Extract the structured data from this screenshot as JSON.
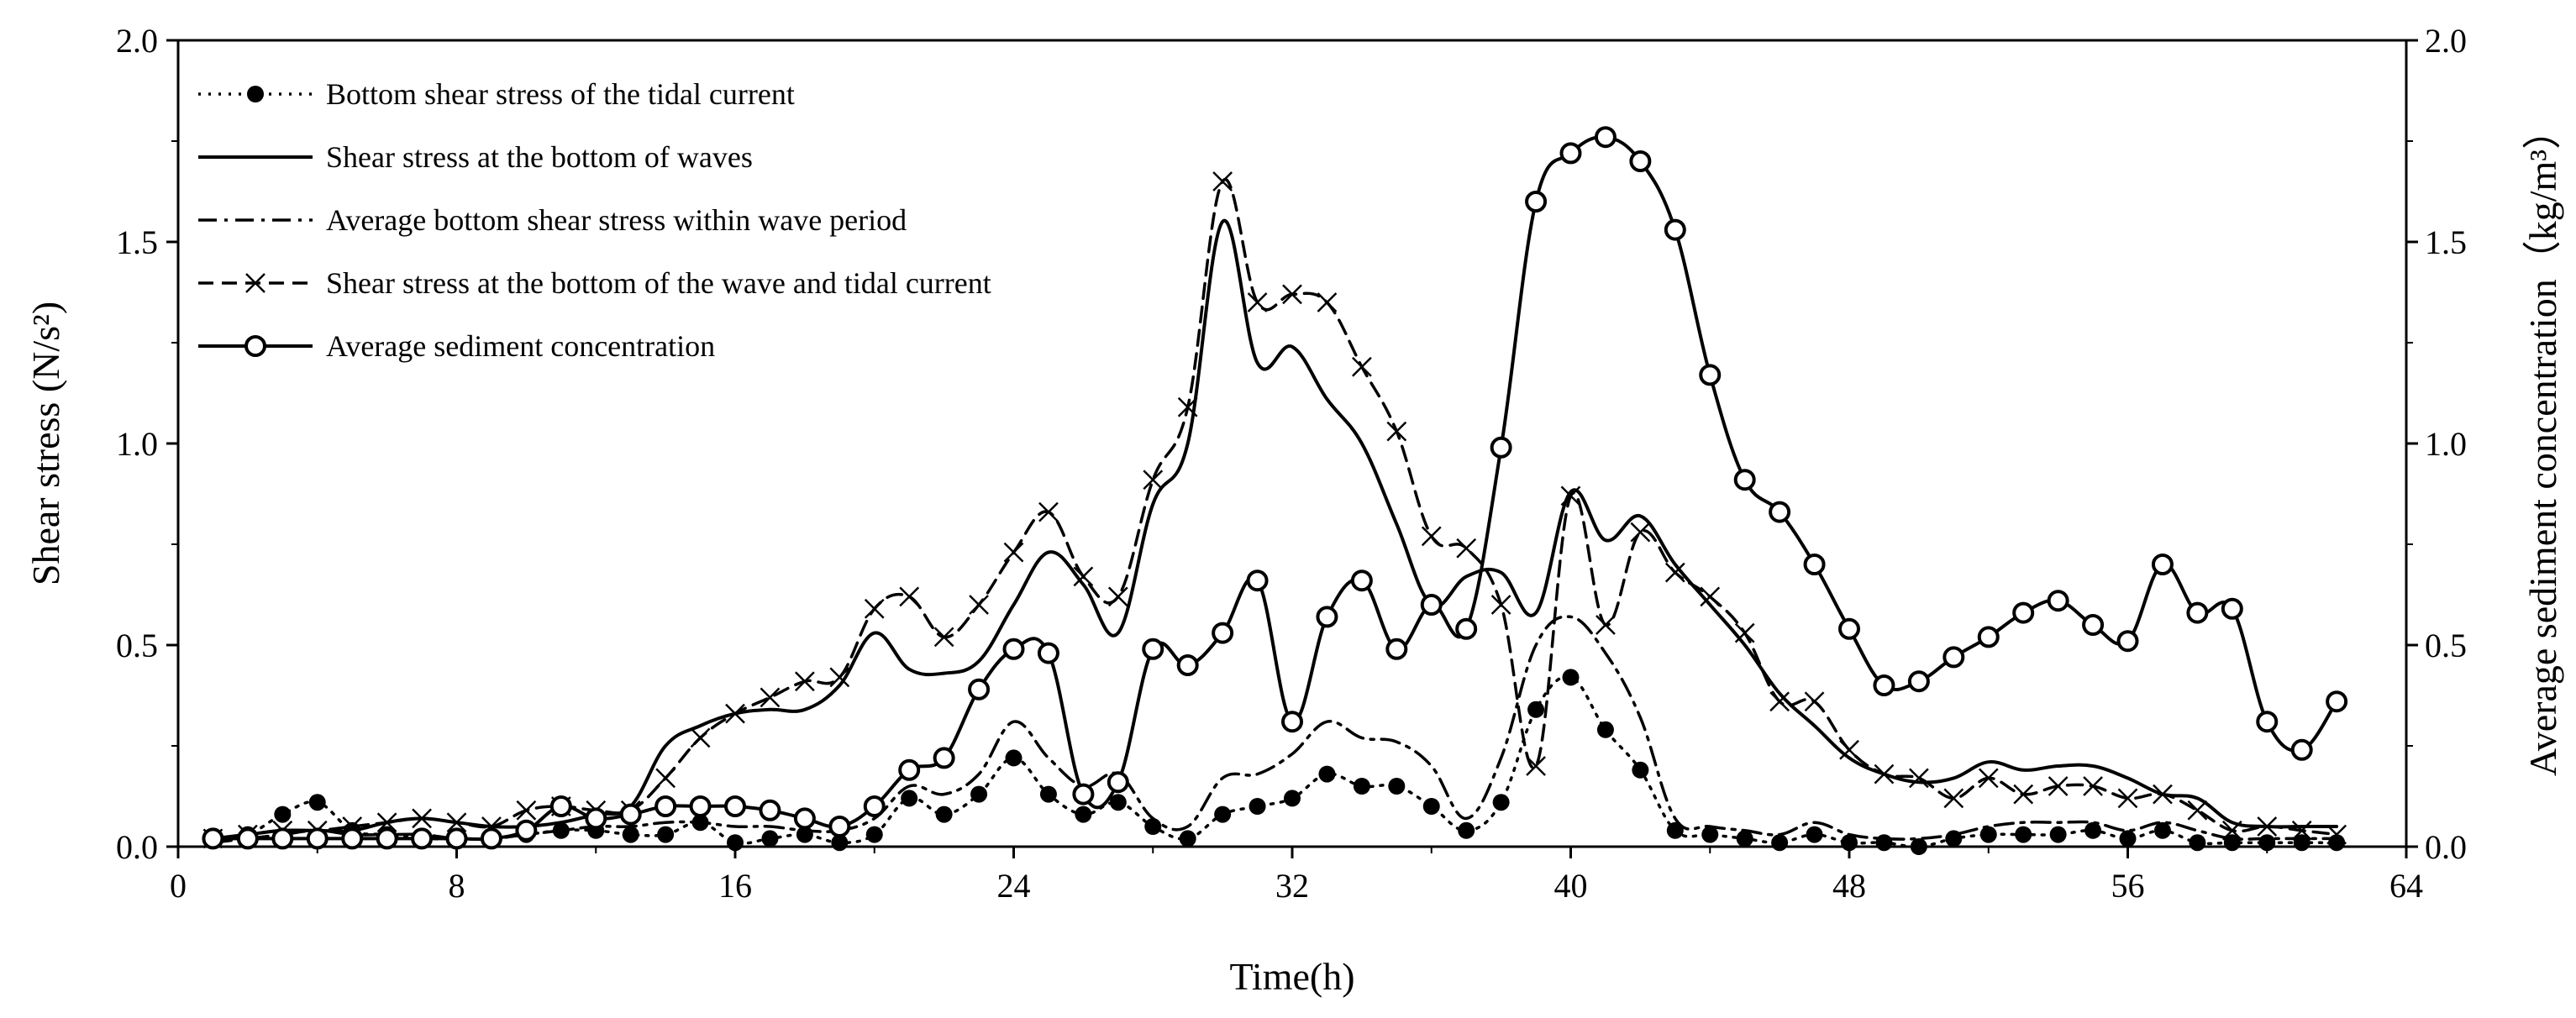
{
  "chart_data": {
    "type": "line",
    "xlabel": "Time(h)",
    "ylabel": "Shear stress (N/s²)",
    "y2label": "Average sediment concentration（kg/m³）",
    "xlim": [
      0,
      64
    ],
    "ylim": [
      0,
      2.0
    ],
    "y2lim": [
      0,
      2.0
    ],
    "xticks": [
      "0",
      "8",
      "16",
      "24",
      "32",
      "40",
      "48",
      "56",
      "64"
    ],
    "yticks": [
      "0.0",
      "0.5",
      "1.0",
      "1.5",
      "2.0"
    ],
    "y2ticks": [
      "0.0",
      "0.5",
      "1.0",
      "1.5",
      "2.0"
    ],
    "legend_position": "top-left",
    "series": [
      {
        "name": "Bottom shear stress of the tidal current",
        "style": "dotted",
        "marker": "filled-circle",
        "axis": "left",
        "points": [
          [
            1,
            0.02
          ],
          [
            2,
            0.03
          ],
          [
            3,
            0.08
          ],
          [
            4,
            0.11
          ],
          [
            5,
            0.04
          ],
          [
            6,
            0.03
          ],
          [
            7,
            0.02
          ],
          [
            8,
            0.02
          ],
          [
            9,
            0.02
          ],
          [
            10,
            0.03
          ],
          [
            11,
            0.04
          ],
          [
            12,
            0.04
          ],
          [
            13,
            0.03
          ],
          [
            14,
            0.03
          ],
          [
            15,
            0.06
          ],
          [
            16,
            0.01
          ],
          [
            17,
            0.02
          ],
          [
            18,
            0.03
          ],
          [
            19,
            0.01
          ],
          [
            20,
            0.03
          ],
          [
            21,
            0.12
          ],
          [
            22,
            0.08
          ],
          [
            23,
            0.13
          ],
          [
            24,
            0.22
          ],
          [
            25,
            0.13
          ],
          [
            26,
            0.08
          ],
          [
            27,
            0.11
          ],
          [
            28,
            0.05
          ],
          [
            29,
            0.02
          ],
          [
            30,
            0.08
          ],
          [
            31,
            0.1
          ],
          [
            32,
            0.12
          ],
          [
            33,
            0.18
          ],
          [
            34,
            0.15
          ],
          [
            35,
            0.15
          ],
          [
            36,
            0.1
          ],
          [
            37,
            0.04
          ],
          [
            38,
            0.11
          ],
          [
            39,
            0.34
          ],
          [
            40,
            0.42
          ],
          [
            41,
            0.29
          ],
          [
            42,
            0.19
          ],
          [
            43,
            0.04
          ],
          [
            44,
            0.03
          ],
          [
            45,
            0.02
          ],
          [
            46,
            0.01
          ],
          [
            47,
            0.03
          ],
          [
            48,
            0.01
          ],
          [
            49,
            0.01
          ],
          [
            50,
            0.0
          ],
          [
            51,
            0.02
          ],
          [
            52,
            0.03
          ],
          [
            53,
            0.03
          ],
          [
            54,
            0.03
          ],
          [
            55,
            0.04
          ],
          [
            56,
            0.02
          ],
          [
            57,
            0.04
          ],
          [
            58,
            0.01
          ],
          [
            59,
            0.01
          ],
          [
            60,
            0.01
          ],
          [
            61,
            0.01
          ],
          [
            62,
            0.01
          ]
        ]
      },
      {
        "name": "Shear stress at the bottom of waves",
        "style": "solid",
        "marker": "none",
        "axis": "left",
        "points": [
          [
            1,
            0.02
          ],
          [
            2,
            0.03
          ],
          [
            3,
            0.04
          ],
          [
            4,
            0.04
          ],
          [
            5,
            0.04
          ],
          [
            6,
            0.06
          ],
          [
            7,
            0.07
          ],
          [
            8,
            0.06
          ],
          [
            9,
            0.05
          ],
          [
            10,
            0.05
          ],
          [
            11,
            0.06
          ],
          [
            12,
            0.08
          ],
          [
            13,
            0.1
          ],
          [
            14,
            0.25
          ],
          [
            15,
            0.3
          ],
          [
            16,
            0.33
          ],
          [
            17,
            0.34
          ],
          [
            18,
            0.34
          ],
          [
            19,
            0.4
          ],
          [
            20,
            0.53
          ],
          [
            21,
            0.44
          ],
          [
            22,
            0.43
          ],
          [
            23,
            0.46
          ],
          [
            24,
            0.6
          ],
          [
            25,
            0.73
          ],
          [
            26,
            0.65
          ],
          [
            27,
            0.53
          ],
          [
            28,
            0.85
          ],
          [
            29,
            1.0
          ],
          [
            30,
            1.55
          ],
          [
            31,
            1.2
          ],
          [
            32,
            1.24
          ],
          [
            33,
            1.11
          ],
          [
            34,
            1.0
          ],
          [
            35,
            0.8
          ],
          [
            36,
            0.6
          ],
          [
            37,
            0.67
          ],
          [
            38,
            0.68
          ],
          [
            39,
            0.58
          ],
          [
            40,
            0.88
          ],
          [
            41,
            0.76
          ],
          [
            42,
            0.82
          ],
          [
            43,
            0.7
          ],
          [
            44,
            0.6
          ],
          [
            45,
            0.5
          ],
          [
            46,
            0.38
          ],
          [
            47,
            0.3
          ],
          [
            48,
            0.22
          ],
          [
            49,
            0.18
          ],
          [
            50,
            0.16
          ],
          [
            51,
            0.17
          ],
          [
            52,
            0.21
          ],
          [
            53,
            0.19
          ],
          [
            54,
            0.2
          ],
          [
            55,
            0.2
          ],
          [
            56,
            0.17
          ],
          [
            57,
            0.13
          ],
          [
            58,
            0.12
          ],
          [
            59,
            0.06
          ],
          [
            60,
            0.05
          ],
          [
            61,
            0.05
          ],
          [
            62,
            0.05
          ]
        ]
      },
      {
        "name": "Average bottom shear stress within wave period",
        "style": "dash-dot",
        "marker": "none",
        "axis": "left",
        "points": [
          [
            1,
            0.01
          ],
          [
            2,
            0.02
          ],
          [
            3,
            0.03
          ],
          [
            4,
            0.04
          ],
          [
            5,
            0.03
          ],
          [
            6,
            0.03
          ],
          [
            7,
            0.03
          ],
          [
            8,
            0.02
          ],
          [
            9,
            0.02
          ],
          [
            10,
            0.03
          ],
          [
            11,
            0.04
          ],
          [
            12,
            0.05
          ],
          [
            13,
            0.05
          ],
          [
            14,
            0.06
          ],
          [
            15,
            0.06
          ],
          [
            16,
            0.05
          ],
          [
            17,
            0.05
          ],
          [
            18,
            0.04
          ],
          [
            19,
            0.04
          ],
          [
            20,
            0.07
          ],
          [
            21,
            0.15
          ],
          [
            22,
            0.13
          ],
          [
            23,
            0.18
          ],
          [
            24,
            0.31
          ],
          [
            25,
            0.22
          ],
          [
            26,
            0.15
          ],
          [
            27,
            0.18
          ],
          [
            28,
            0.07
          ],
          [
            29,
            0.05
          ],
          [
            30,
            0.17
          ],
          [
            31,
            0.18
          ],
          [
            32,
            0.23
          ],
          [
            33,
            0.31
          ],
          [
            34,
            0.27
          ],
          [
            35,
            0.26
          ],
          [
            36,
            0.2
          ],
          [
            37,
            0.07
          ],
          [
            38,
            0.22
          ],
          [
            39,
            0.5
          ],
          [
            40,
            0.57
          ],
          [
            41,
            0.48
          ],
          [
            42,
            0.32
          ],
          [
            43,
            0.07
          ],
          [
            44,
            0.05
          ],
          [
            45,
            0.04
          ],
          [
            46,
            0.03
          ],
          [
            47,
            0.06
          ],
          [
            48,
            0.03
          ],
          [
            49,
            0.02
          ],
          [
            50,
            0.02
          ],
          [
            51,
            0.03
          ],
          [
            52,
            0.05
          ],
          [
            53,
            0.06
          ],
          [
            54,
            0.06
          ],
          [
            55,
            0.06
          ],
          [
            56,
            0.04
          ],
          [
            57,
            0.06
          ],
          [
            58,
            0.04
          ],
          [
            59,
            0.02
          ],
          [
            60,
            0.02
          ],
          [
            61,
            0.02
          ],
          [
            62,
            0.02
          ]
        ]
      },
      {
        "name": "Shear stress at the bottom of the wave and tidal current",
        "style": "dashed",
        "marker": "x",
        "axis": "left",
        "points": [
          [
            1,
            0.02
          ],
          [
            2,
            0.03
          ],
          [
            3,
            0.04
          ],
          [
            4,
            0.04
          ],
          [
            5,
            0.05
          ],
          [
            6,
            0.06
          ],
          [
            7,
            0.07
          ],
          [
            8,
            0.06
          ],
          [
            9,
            0.05
          ],
          [
            10,
            0.09
          ],
          [
            11,
            0.1
          ],
          [
            12,
            0.09
          ],
          [
            13,
            0.09
          ],
          [
            14,
            0.17
          ],
          [
            15,
            0.27
          ],
          [
            16,
            0.33
          ],
          [
            17,
            0.37
          ],
          [
            18,
            0.41
          ],
          [
            19,
            0.42
          ],
          [
            20,
            0.59
          ],
          [
            21,
            0.62
          ],
          [
            22,
            0.52
          ],
          [
            23,
            0.6
          ],
          [
            24,
            0.73
          ],
          [
            25,
            0.83
          ],
          [
            26,
            0.67
          ],
          [
            27,
            0.62
          ],
          [
            28,
            0.91
          ],
          [
            29,
            1.09
          ],
          [
            30,
            1.65
          ],
          [
            31,
            1.35
          ],
          [
            32,
            1.37
          ],
          [
            33,
            1.35
          ],
          [
            34,
            1.19
          ],
          [
            35,
            1.03
          ],
          [
            36,
            0.77
          ],
          [
            37,
            0.74
          ],
          [
            38,
            0.6
          ],
          [
            39,
            0.2
          ],
          [
            40,
            0.87
          ],
          [
            41,
            0.55
          ],
          [
            42,
            0.78
          ],
          [
            43,
            0.68
          ],
          [
            44,
            0.62
          ],
          [
            45,
            0.53
          ],
          [
            46,
            0.36
          ],
          [
            47,
            0.36
          ],
          [
            48,
            0.24
          ],
          [
            49,
            0.18
          ],
          [
            50,
            0.17
          ],
          [
            51,
            0.12
          ],
          [
            52,
            0.17
          ],
          [
            53,
            0.13
          ],
          [
            54,
            0.15
          ],
          [
            55,
            0.15
          ],
          [
            56,
            0.12
          ],
          [
            57,
            0.13
          ],
          [
            58,
            0.09
          ],
          [
            59,
            0.04
          ],
          [
            60,
            0.05
          ],
          [
            61,
            0.04
          ],
          [
            62,
            0.03
          ]
        ]
      },
      {
        "name": "Average sediment concentration",
        "style": "solid",
        "marker": "open-circle",
        "axis": "right",
        "points": [
          [
            1,
            0.02
          ],
          [
            2,
            0.02
          ],
          [
            3,
            0.02
          ],
          [
            4,
            0.02
          ],
          [
            5,
            0.02
          ],
          [
            6,
            0.02
          ],
          [
            7,
            0.02
          ],
          [
            8,
            0.02
          ],
          [
            9,
            0.02
          ],
          [
            10,
            0.04
          ],
          [
            11,
            0.1
          ],
          [
            12,
            0.07
          ],
          [
            13,
            0.08
          ],
          [
            14,
            0.1
          ],
          [
            15,
            0.1
          ],
          [
            16,
            0.1
          ],
          [
            17,
            0.09
          ],
          [
            18,
            0.07
          ],
          [
            19,
            0.05
          ],
          [
            20,
            0.1
          ],
          [
            21,
            0.19
          ],
          [
            22,
            0.22
          ],
          [
            23,
            0.39
          ],
          [
            24,
            0.49
          ],
          [
            25,
            0.48
          ],
          [
            26,
            0.13
          ],
          [
            27,
            0.16
          ],
          [
            28,
            0.49
          ],
          [
            29,
            0.45
          ],
          [
            30,
            0.53
          ],
          [
            31,
            0.66
          ],
          [
            32,
            0.31
          ],
          [
            33,
            0.57
          ],
          [
            34,
            0.66
          ],
          [
            35,
            0.49
          ],
          [
            36,
            0.6
          ],
          [
            37,
            0.54
          ],
          [
            38,
            0.99
          ],
          [
            39,
            1.6
          ],
          [
            40,
            1.72
          ],
          [
            41,
            1.76
          ],
          [
            42,
            1.7
          ],
          [
            43,
            1.53
          ],
          [
            44,
            1.17
          ],
          [
            45,
            0.91
          ],
          [
            46,
            0.83
          ],
          [
            47,
            0.7
          ],
          [
            48,
            0.54
          ],
          [
            49,
            0.4
          ],
          [
            50,
            0.41
          ],
          [
            51,
            0.47
          ],
          [
            52,
            0.52
          ],
          [
            53,
            0.58
          ],
          [
            54,
            0.61
          ],
          [
            55,
            0.55
          ],
          [
            56,
            0.51
          ],
          [
            57,
            0.7
          ],
          [
            58,
            0.58
          ],
          [
            59,
            0.59
          ],
          [
            60,
            0.31
          ],
          [
            61,
            0.24
          ],
          [
            62,
            0.36
          ]
        ]
      }
    ]
  }
}
